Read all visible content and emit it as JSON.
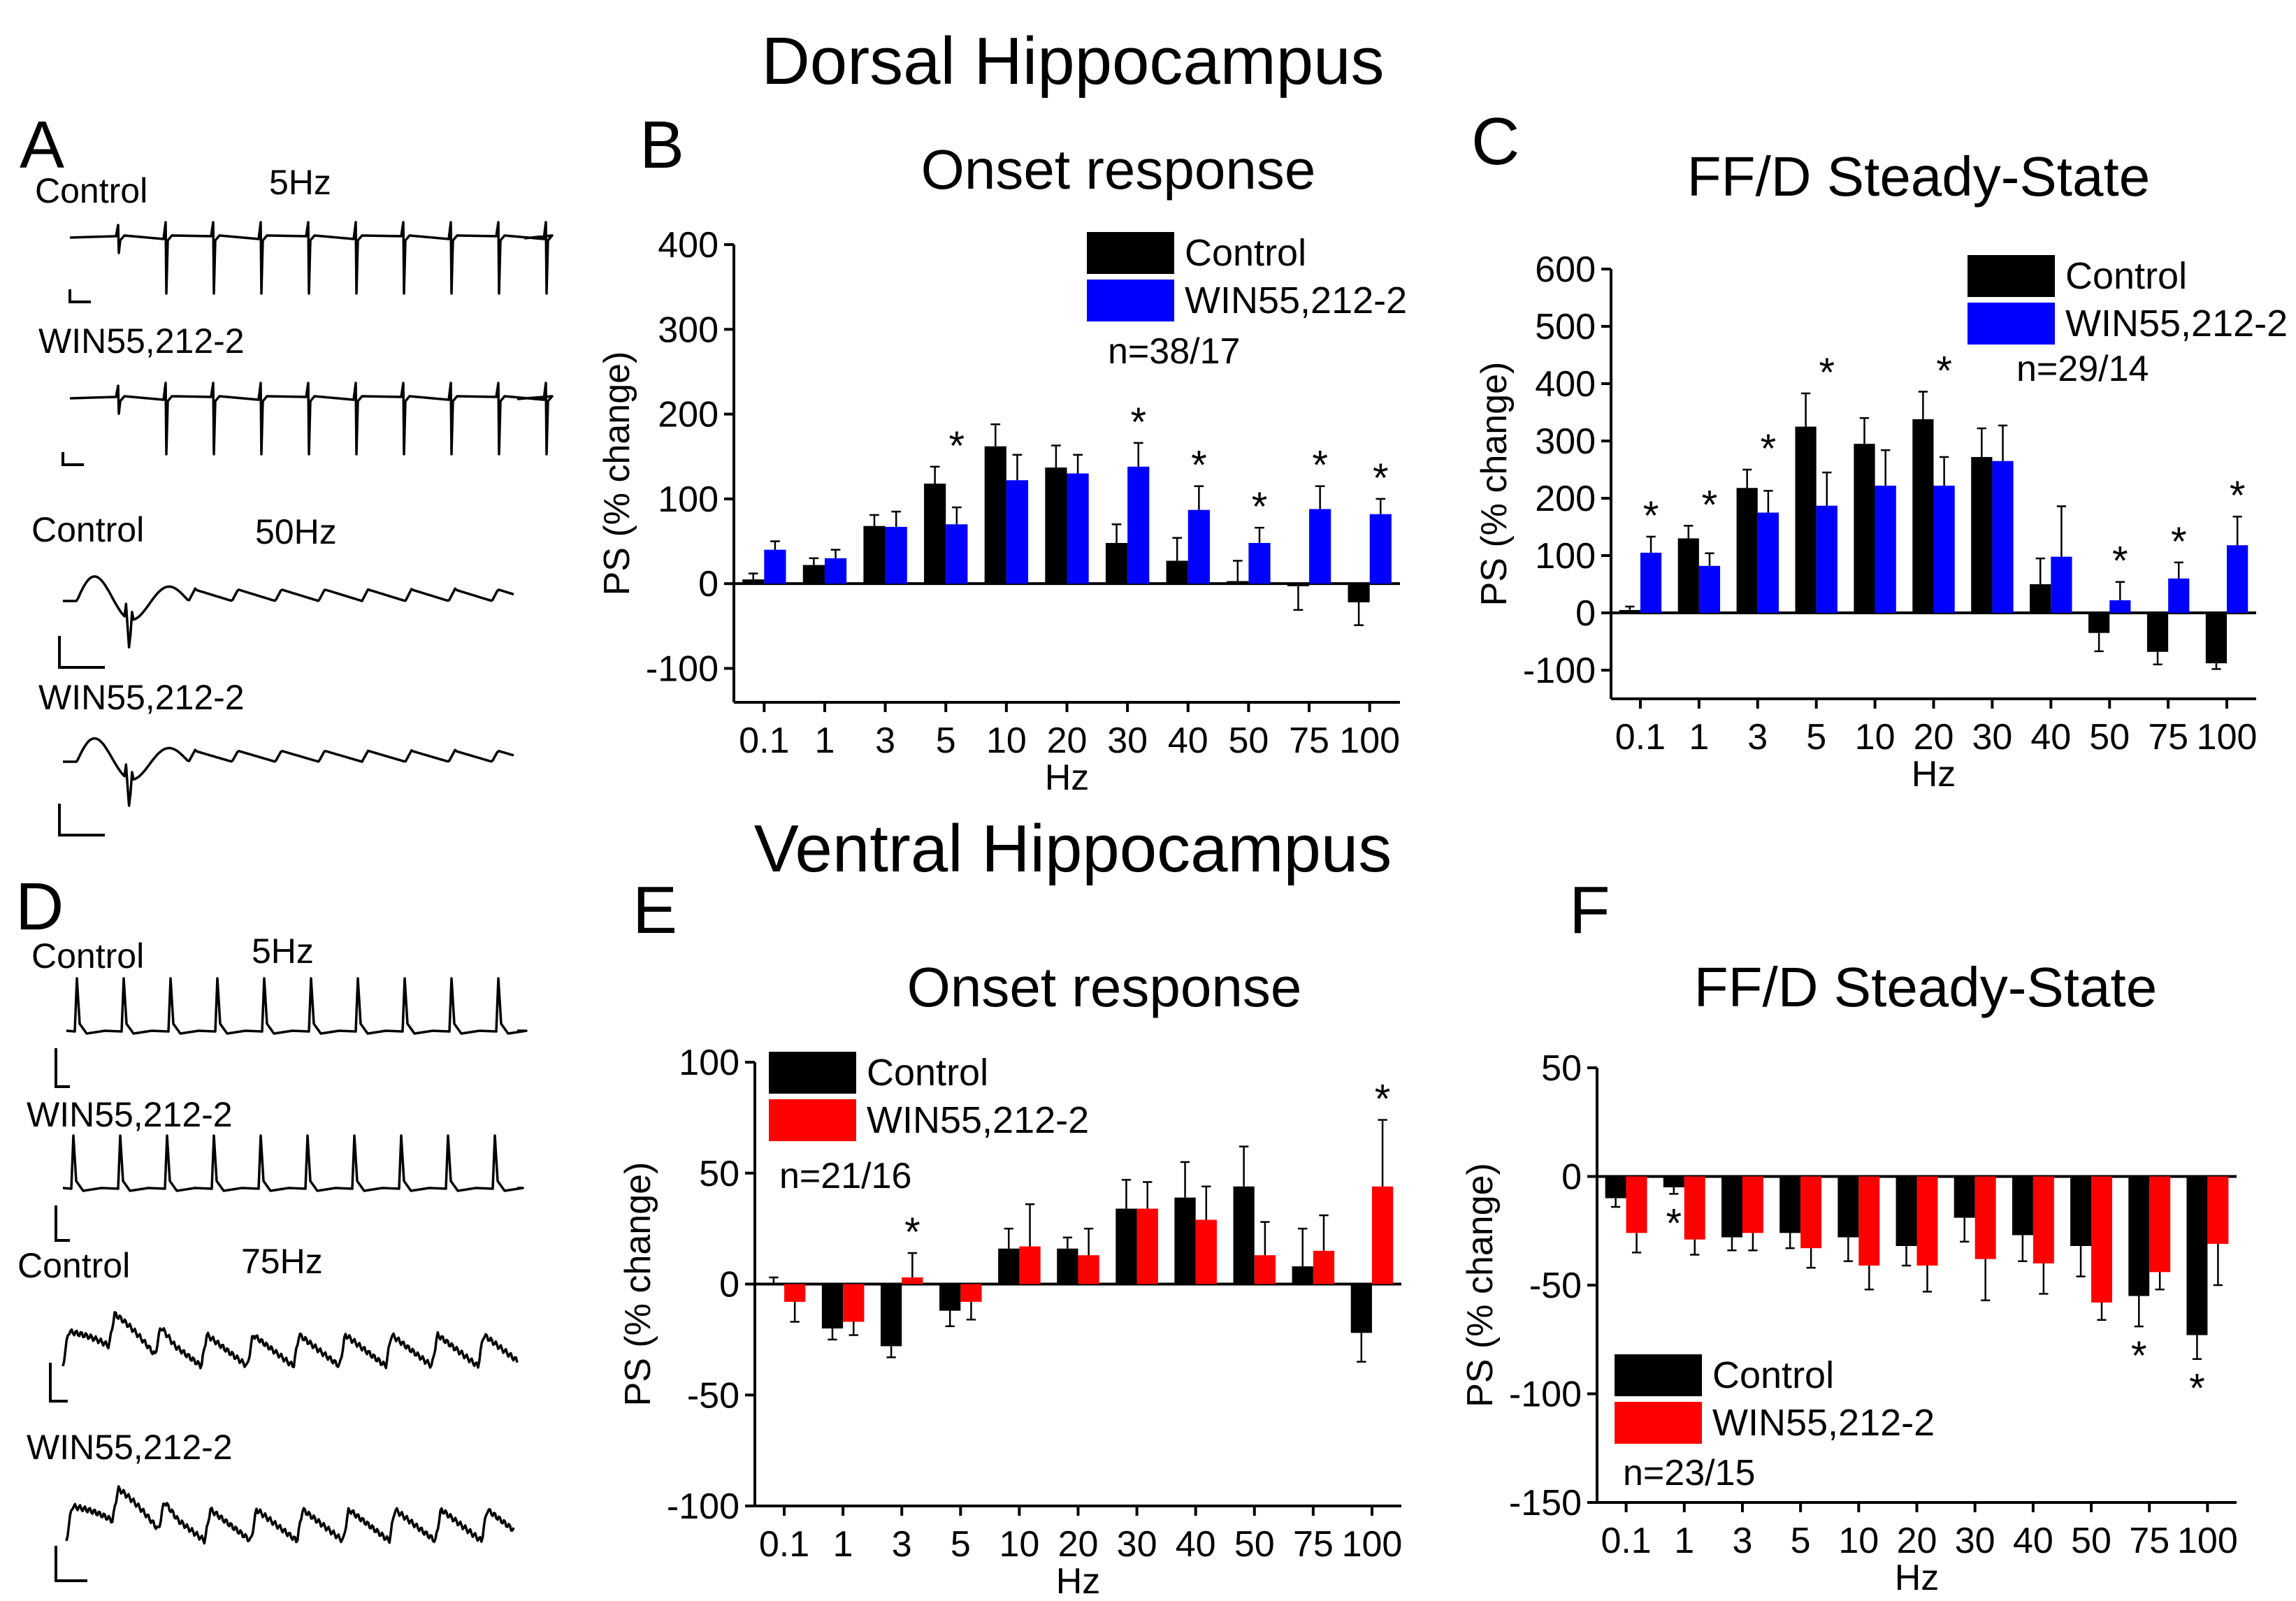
{
  "figure": {
    "dorsal_title": "Dorsal Hippocampus",
    "ventral_title": "Ventral Hippocampus"
  },
  "panel_letters": {
    "A": "A",
    "B": "B",
    "C": "C",
    "D": "D",
    "E": "E",
    "F": "F"
  },
  "colors": {
    "control": "#000000",
    "win_dorsal": "#0000ff",
    "win_ventral": "#ff0000"
  },
  "traces": {
    "A": [
      {
        "label": "Control",
        "freq": "5Hz",
        "kind": "5hz"
      },
      {
        "label": "WIN55,212-2",
        "freq": "",
        "kind": "5hz"
      },
      {
        "label": "Control",
        "freq": "50Hz",
        "kind": "50hz"
      },
      {
        "label": "WIN55,212-2",
        "freq": "",
        "kind": "50hz"
      }
    ],
    "D": [
      {
        "label": "Control",
        "freq": "5Hz",
        "kind": "v5hz"
      },
      {
        "label": "WIN55,212-2",
        "freq": "",
        "kind": "v5hz"
      },
      {
        "label": "Control",
        "freq": "75Hz",
        "kind": "v75hz"
      },
      {
        "label": "WIN55,212-2",
        "freq": "",
        "kind": "v75hz"
      }
    ]
  },
  "chart_data": [
    {
      "id": "B",
      "type": "bar",
      "title": "Onset response",
      "xlabel": "Hz",
      "ylabel": "PS (% change)",
      "categories": [
        "0.1",
        "1",
        "3",
        "5",
        "10",
        "20",
        "30",
        "40",
        "50",
        "75",
        "100"
      ],
      "ylim": [
        -140,
        400
      ],
      "yticks": [
        -100,
        0,
        100,
        200,
        300,
        400
      ],
      "series": [
        {
          "name": "Control",
          "color": "#000000",
          "values": [
            5,
            22,
            68,
            118,
            162,
            137,
            48,
            27,
            3,
            -3,
            -22
          ],
          "errors": [
            7,
            8,
            13,
            20,
            26,
            26,
            22,
            27,
            24,
            28,
            27
          ]
        },
        {
          "name": "WIN55,212-2",
          "color": "#0000ff",
          "values": [
            40,
            30,
            67,
            70,
            122,
            130,
            138,
            87,
            48,
            88,
            82
          ],
          "errors": [
            10,
            10,
            18,
            20,
            30,
            22,
            28,
            28,
            18,
            27,
            18
          ]
        }
      ],
      "significant": [
        "3",
        "6",
        "7",
        "8",
        "9",
        "10"
      ],
      "legend": {
        "position": "top-right",
        "n_label": "n=38/17"
      },
      "grid": false
    },
    {
      "id": "C",
      "type": "bar",
      "title": "FF/D Steady-State",
      "xlabel": "Hz",
      "ylabel": "PS (% change)",
      "categories": [
        "0.1",
        "1",
        "3",
        "5",
        "10",
        "20",
        "30",
        "40",
        "50",
        "75",
        "100"
      ],
      "ylim": [
        -150,
        600
      ],
      "yticks": [
        -100,
        0,
        100,
        200,
        300,
        400,
        500,
        600
      ],
      "series": [
        {
          "name": "Control",
          "color": "#000000",
          "values": [
            5,
            130,
            218,
            325,
            295,
            338,
            272,
            50,
            -35,
            -68,
            -88
          ],
          "errors": [
            6,
            22,
            32,
            58,
            45,
            48,
            50,
            45,
            32,
            22,
            10
          ]
        },
        {
          "name": "WIN55,212-2",
          "color": "#0000ff",
          "values": [
            105,
            82,
            175,
            187,
            222,
            222,
            265,
            98,
            22,
            60,
            118
          ],
          "errors": [
            28,
            22,
            38,
            58,
            62,
            50,
            62,
            88,
            32,
            28,
            50
          ]
        }
      ],
      "significant": [
        "0",
        "1",
        "2",
        "3",
        "5",
        "8",
        "9",
        "10"
      ],
      "legend": {
        "position": "top-right",
        "n_label": "n=29/14"
      },
      "grid": false
    },
    {
      "id": "E",
      "type": "bar",
      "title": "Onset response",
      "xlabel": "Hz",
      "ylabel": "PS (% change)",
      "categories": [
        "0.1",
        "1",
        "3",
        "5",
        "10",
        "20",
        "30",
        "40",
        "50",
        "75",
        "100"
      ],
      "ylim": [
        -100,
        100
      ],
      "yticks": [
        -100,
        -50,
        0,
        50,
        100
      ],
      "series": [
        {
          "name": "Control",
          "color": "#000000",
          "values": [
            0,
            -20,
            -28,
            -12,
            16,
            16,
            34,
            39,
            44,
            8,
            -22
          ],
          "errors": [
            3,
            5,
            5,
            7,
            9,
            5,
            13,
            16,
            18,
            17,
            13
          ]
        },
        {
          "name": "WIN55,212-2",
          "color": "#ff0000",
          "values": [
            -8,
            -17,
            3,
            -8,
            17,
            13,
            34,
            29,
            13,
            15,
            44
          ],
          "errors": [
            9,
            6,
            11,
            8,
            19,
            12,
            12,
            15,
            15,
            16,
            30
          ]
        }
      ],
      "significant": [
        "2",
        "10"
      ],
      "legend": {
        "position": "top-left",
        "n_label": "n=21/16"
      },
      "grid": false
    },
    {
      "id": "F",
      "type": "bar",
      "title": "FF/D Steady-State",
      "xlabel": "Hz",
      "ylabel": "PS (% change)",
      "categories": [
        "0.1",
        "1",
        "3",
        "5",
        "10",
        "20",
        "30",
        "40",
        "50",
        "75",
        "100"
      ],
      "ylim": [
        -150,
        50
      ],
      "yticks": [
        -150,
        -100,
        -50,
        0,
        50
      ],
      "series": [
        {
          "name": "Control",
          "color": "#000000",
          "values": [
            -10,
            -5,
            -28,
            -26,
            -28,
            -32,
            -19,
            -27,
            -32,
            -55,
            -73
          ],
          "errors": [
            4,
            3,
            6,
            7,
            11,
            9,
            11,
            12,
            14,
            14,
            11
          ]
        },
        {
          "name": "WIN55,212-2",
          "color": "#ff0000",
          "values": [
            -26,
            -29,
            -26,
            -33,
            -41,
            -41,
            -38,
            -40,
            -58,
            -44,
            -31
          ],
          "errors": [
            9,
            7,
            8,
            9,
            11,
            12,
            19,
            14,
            8,
            8,
            19
          ]
        }
      ],
      "significant": [
        "1",
        "9",
        "10"
      ],
      "significant_below": true,
      "legend": {
        "position": "bottom-left",
        "n_label": "n=23/15"
      },
      "grid": false
    }
  ]
}
